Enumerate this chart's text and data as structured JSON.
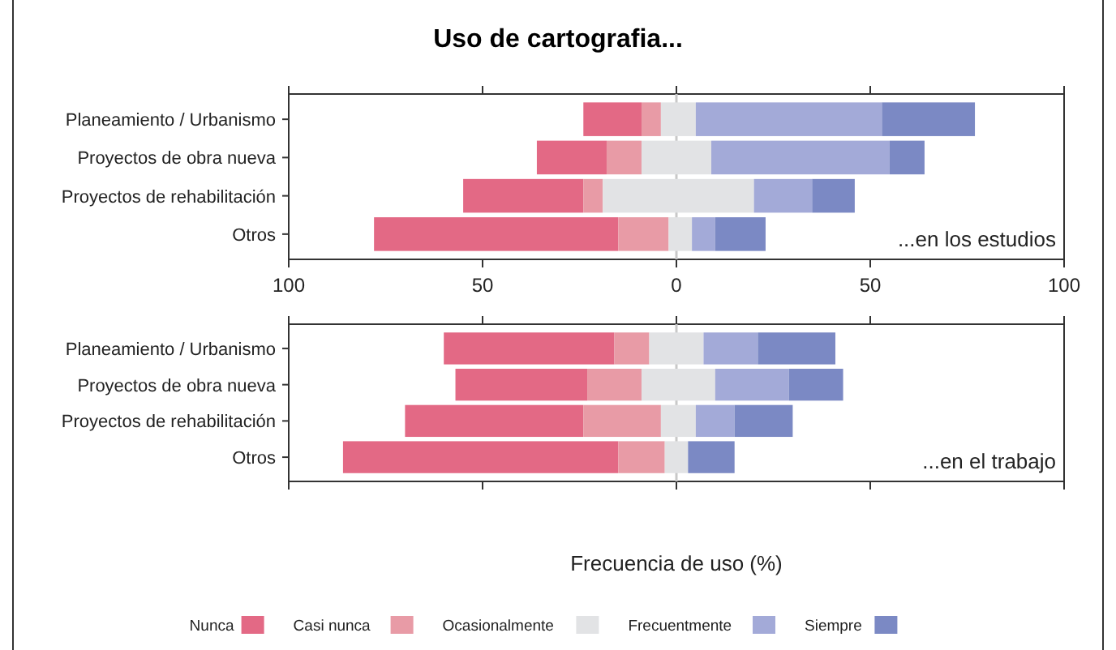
{
  "chart_data": [
    {
      "type": "bar",
      "title": "Uso de cartografia...",
      "orientation": "horizontal",
      "categories": [
        "Planeamiento / Urbanismo",
        "Proyectos de obra nueva",
        "Proyectos de rehabilitación",
        "Otros"
      ],
      "series": [
        {
          "color": "#e36985",
          "base": [
            -24,
            -36,
            -55,
            -78
          ],
          "values": [
            15,
            18,
            31,
            63
          ]
        },
        {
          "color": "#e89ba6",
          "base": [
            -9,
            -18,
            -24,
            -15
          ],
          "values": [
            5,
            9,
            5,
            13
          ]
        },
        {
          "color": "#e2e3e5",
          "base": [
            -4,
            -9,
            -19,
            -2
          ],
          "values": [
            9,
            18,
            39,
            6
          ]
        },
        {
          "color": "#a3aad8",
          "base": [
            5,
            9,
            20,
            4
          ],
          "values": [
            48,
            46,
            15,
            6
          ]
        },
        {
          "color": "#7b89c4",
          "base": [
            53,
            55,
            35,
            10
          ],
          "values": [
            24,
            9,
            11,
            13
          ]
        }
      ],
      "xlim": [
        -100,
        100
      ],
      "xticks": [
        {
          "value": -100,
          "label": "100"
        },
        {
          "value": -50,
          "label": "50"
        },
        0,
        50,
        100
      ],
      "ref_lines": [
        {
          "axis": "x",
          "value": 0,
          "color": "#c8c8c8"
        }
      ],
      "annotations": [
        "...en los estudios"
      ]
    },
    {
      "type": "bar",
      "orientation": "horizontal",
      "categories": [
        "Planeamiento / Urbanismo",
        "Proyectos de obra nueva",
        "Proyectos de rehabilitación",
        "Otros"
      ],
      "series": [
        {
          "name": "Nunca",
          "color": "#e36985",
          "base": [
            -60,
            -57,
            -70,
            -86
          ],
          "values": [
            44,
            34,
            46,
            71
          ]
        },
        {
          "name": "Casi nunca",
          "color": "#e89ba6",
          "base": [
            -16,
            -23,
            -24,
            -15
          ],
          "values": [
            9,
            14,
            20,
            12
          ]
        },
        {
          "name": "Ocasionalmente",
          "color": "#e2e3e5",
          "base": [
            -7,
            -9,
            -4,
            -3
          ],
          "values": [
            14,
            19,
            9,
            6
          ]
        },
        {
          "name": "Frecuentmente",
          "color": "#a3aad8",
          "base": [
            7,
            10,
            5,
            null
          ],
          "values": [
            14,
            19,
            10,
            null
          ]
        },
        {
          "name": "Siempre",
          "color": "#7b89c4",
          "base": [
            21,
            29,
            15,
            3
          ],
          "values": [
            20,
            14,
            15,
            12
          ]
        }
      ],
      "xlim": [
        -100,
        100
      ],
      "xticks": [
        {
          "value": -100,
          "label": null
        },
        {
          "value": -50,
          "label": null
        },
        {
          "value": 0,
          "label": null
        },
        {
          "value": 50,
          "label": null
        },
        {
          "value": 100,
          "label": null
        }
      ],
      "tick_labels": "y",
      "xlabel": "Frecuencia de uso (%)",
      "legend": "bottom",
      "ref_lines": [
        {
          "axis": "x",
          "value": 0,
          "color": "#c8c8c8"
        }
      ],
      "annotations": [
        "...en el trabajo"
      ]
    }
  ]
}
